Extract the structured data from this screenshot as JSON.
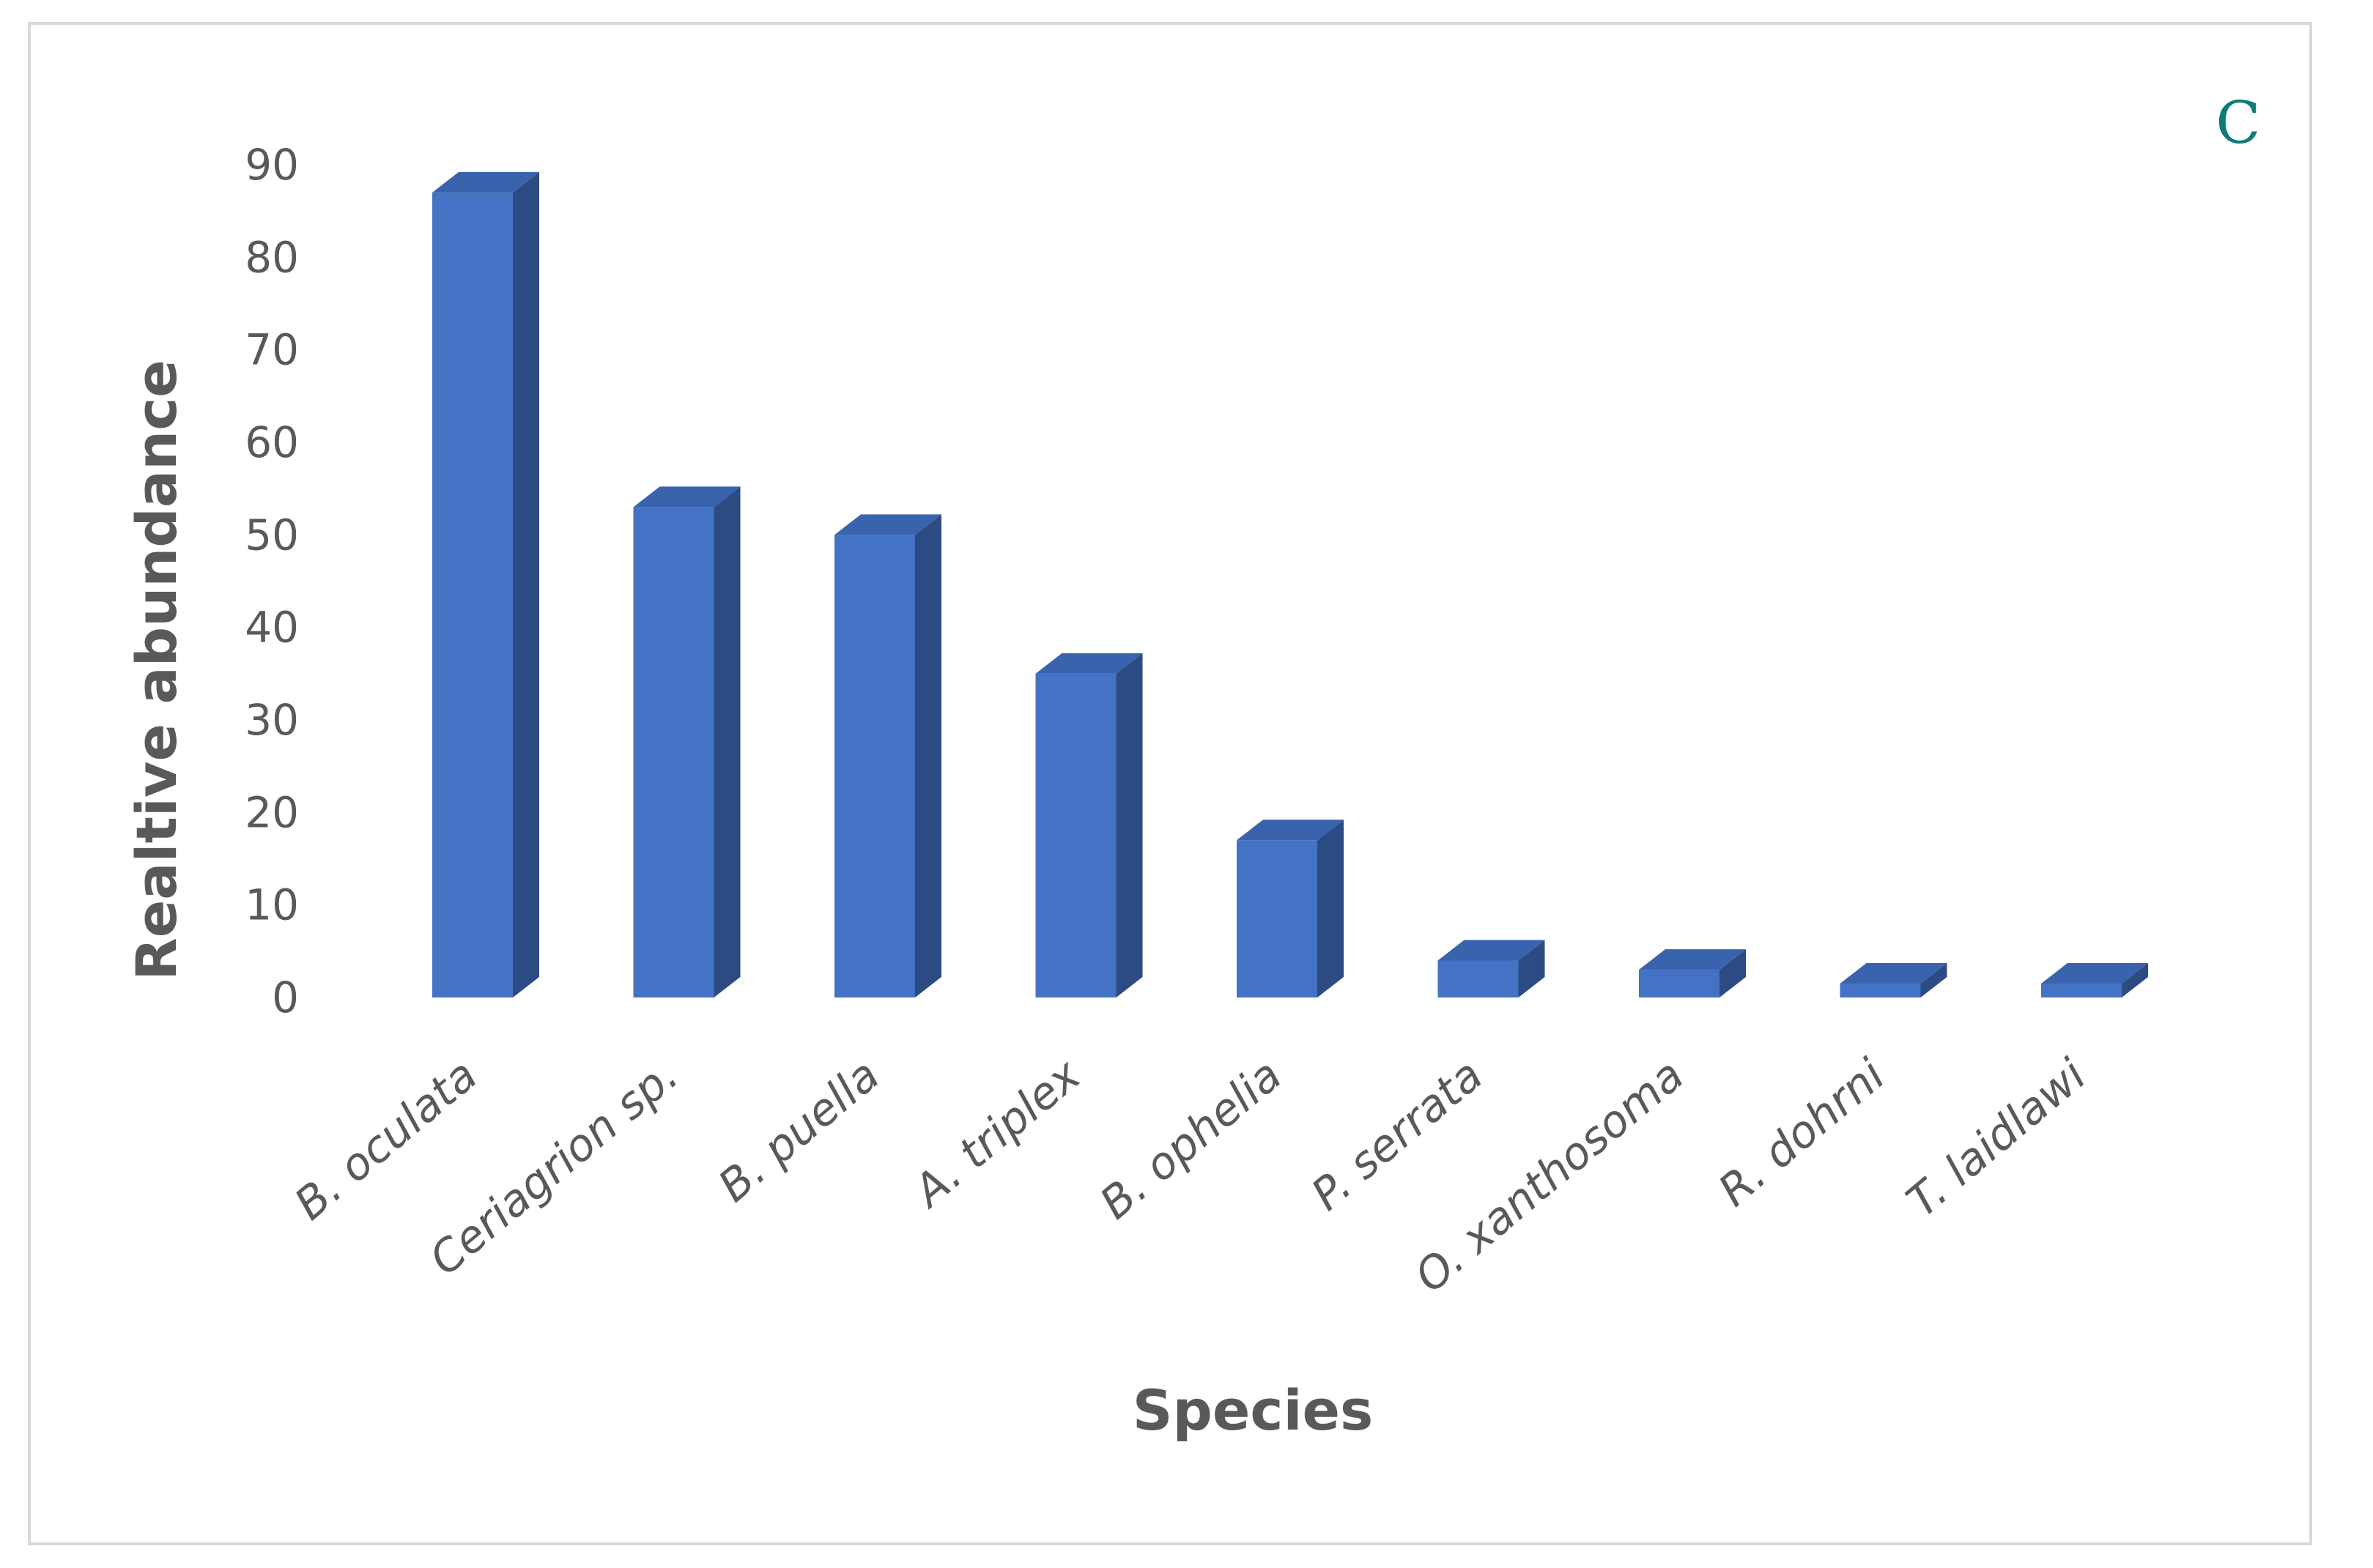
{
  "panel_label": "C",
  "chart_data": {
    "type": "bar",
    "categories": [
      "B. oculata",
      "Ceriagrion sp.",
      "B. puella",
      "A. triplex",
      "B. ophelia",
      "P. serrata",
      "O. xanthosoma",
      "R. dohrni",
      "T. laidlawi"
    ],
    "values": [
      87,
      53,
      50,
      35,
      17,
      4,
      3,
      1.5,
      1.5
    ],
    "xlabel": "Species",
    "ylabel": "Realtive abundance",
    "ylim": [
      0,
      90
    ],
    "yticks": [
      "0",
      "10",
      "20",
      "30",
      "40",
      "50",
      "60",
      "70",
      "80",
      "90"
    ],
    "grid": false,
    "legend": "none",
    "colors": {
      "bar_front": "#4472c4",
      "bar_side": "#2c4b82",
      "bar_top": "#3a63ad"
    }
  }
}
